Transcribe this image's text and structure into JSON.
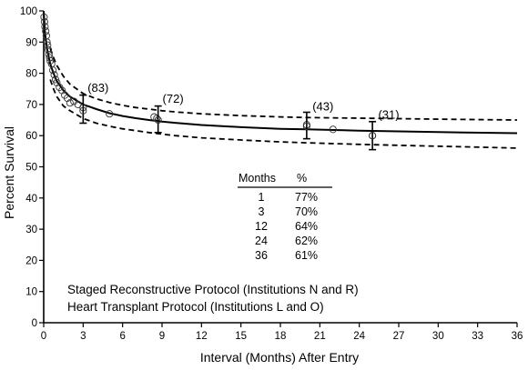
{
  "chart_data": {
    "type": "line",
    "title": "",
    "xlabel": "Interval (Months) After Entry",
    "ylabel": "Percent Survival",
    "xlim": [
      0,
      36
    ],
    "ylim": [
      0,
      100
    ],
    "x_ticks": [
      0,
      3,
      6,
      9,
      12,
      15,
      18,
      21,
      24,
      27,
      30,
      33,
      36
    ],
    "y_ticks": [
      0,
      10,
      20,
      30,
      40,
      50,
      60,
      70,
      80,
      90,
      100
    ],
    "grid": false,
    "series": [
      {
        "style": "solid",
        "x": [
          0,
          0.1,
          0.25,
          0.5,
          0.75,
          1,
          1.5,
          2,
          3,
          4,
          5,
          6,
          7,
          8,
          9,
          10,
          12,
          15,
          18,
          20,
          24,
          28,
          32,
          36
        ],
        "y": [
          100,
          93,
          88,
          83,
          80,
          77.5,
          74.5,
          72.5,
          70,
          68.5,
          67.2,
          66.3,
          65.6,
          65,
          64.5,
          64.1,
          63.4,
          62.7,
          62.2,
          62,
          61.6,
          61.3,
          61,
          60.8
        ]
      },
      {
        "style": "dashed",
        "x": [
          0.5,
          0.75,
          1,
          1.5,
          2,
          3,
          4,
          5,
          6,
          7,
          8,
          9,
          10,
          12,
          15,
          18,
          20,
          24,
          28,
          32,
          36
        ],
        "y": [
          88,
          85,
          82.5,
          79,
          76.5,
          73.5,
          71.8,
          70.6,
          69.7,
          69,
          68.5,
          68,
          67.6,
          67,
          66.4,
          66,
          65.8,
          65.6,
          65.4,
          65.2,
          65
        ]
      },
      {
        "style": "dashed",
        "x": [
          0.5,
          0.75,
          1,
          1.5,
          2,
          3,
          4,
          5,
          6,
          7,
          8,
          9,
          10,
          12,
          15,
          18,
          20,
          24,
          28,
          32,
          36
        ],
        "y": [
          78,
          75,
          72.5,
          69.5,
          68,
          65.5,
          64,
          63,
          62.2,
          61.6,
          61,
          60.5,
          60,
          59.3,
          58.6,
          58,
          57.7,
          57.2,
          56.8,
          56.4,
          56
        ]
      }
    ],
    "observed_points": {
      "x": [
        0.03,
        0.06,
        0.1,
        0.15,
        0.2,
        0.25,
        0.3,
        0.35,
        0.4,
        0.45,
        0.5,
        0.6,
        0.7,
        0.8,
        0.9,
        1,
        1.2,
        1.4,
        1.6,
        1.8,
        2,
        2.3,
        2.6,
        3,
        5,
        8.4,
        8.6,
        20,
        22,
        25
      ],
      "y": [
        98,
        96.5,
        95,
        93.5,
        92,
        90,
        89,
        87.5,
        86,
        85,
        84,
        83,
        81,
        79.5,
        78,
        77,
        75.5,
        74.5,
        73,
        72,
        70.5,
        71,
        70,
        69,
        67,
        66,
        65.5,
        63.5,
        62,
        60
      ]
    },
    "error_bars": [
      {
        "x": 3,
        "y": 68,
        "lower": 64,
        "upper": 73
      },
      {
        "x": 8.7,
        "y": 65,
        "lower": 61,
        "upper": 69.5
      },
      {
        "x": 20,
        "y": 63,
        "lower": 59,
        "upper": 67.5
      },
      {
        "x": 25,
        "y": 60,
        "lower": 55.5,
        "upper": 64.5
      }
    ],
    "n_labels": [
      {
        "x": 3.2,
        "y": 73.5,
        "text": "(83)"
      },
      {
        "x": 8.9,
        "y": 70,
        "text": "(72)"
      },
      {
        "x": 20.3,
        "y": 67.5,
        "text": "(43)"
      },
      {
        "x": 25.3,
        "y": 64.8,
        "text": "(31)"
      }
    ],
    "table": {
      "headers": [
        "Months",
        "%"
      ],
      "rows": [
        [
          "1",
          "77%"
        ],
        [
          "3",
          "70%"
        ],
        [
          "12",
          "64%"
        ],
        [
          "24",
          "62%"
        ],
        [
          "36",
          "61%"
        ]
      ]
    },
    "annotations": [
      "Staged Reconstructive Protocol (Institutions N and R)",
      "Heart Transplant Protocol (Institutions L and O)"
    ]
  }
}
